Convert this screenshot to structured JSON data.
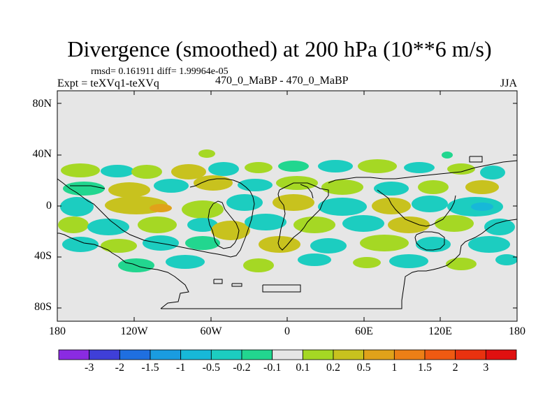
{
  "title": "Divergence (smoothed) at 200 hPa (10**6 m/s)",
  "stats_line": "rmsd= 0.161911 diff= 1.99964e-05",
  "left_label": "Expt = teXVq1-teXVq",
  "center_label": "470_0_MaBP - 470_0_MaBP",
  "right_label": "JJA",
  "map_data": {
    "type": "filled-contour map",
    "variable": "Divergence (smoothed) at 200 hPa",
    "units": "10**6 m/s",
    "season": "JJA",
    "projection": "cylindrical equidistant",
    "lon_range": [
      -180,
      180
    ],
    "lat_range": [
      -90,
      90
    ],
    "background": "#e6e6e6",
    "y_tick_labels": [
      "80N",
      "40N",
      "0",
      "40S",
      "80S"
    ],
    "y_tick_values": [
      80,
      40,
      0,
      -40,
      -80
    ],
    "x_tick_labels": [
      "180",
      "120W",
      "60W",
      "0",
      "60E",
      "120E",
      "180"
    ],
    "x_tick_values": [
      -180,
      -120,
      -60,
      0,
      60,
      120,
      180
    ]
  },
  "colorbar": {
    "labels": [
      "-3",
      "-2",
      "-1.5",
      "-1",
      "-0.5",
      "-0.2",
      "-0.1",
      "0.1",
      "0.2",
      "0.5",
      "1",
      "1.5",
      "2",
      "3"
    ],
    "colors": [
      "#8a2be2",
      "#3f3fd8",
      "#1f6fe0",
      "#1a9ce0",
      "#17b8d8",
      "#1ccdc0",
      "#22d68f",
      "#e6e6e6",
      "#a5d824",
      "#c8c21e",
      "#e0a21a",
      "#ec7f16",
      "#ef5a12",
      "#e9320f",
      "#e01010"
    ]
  }
}
